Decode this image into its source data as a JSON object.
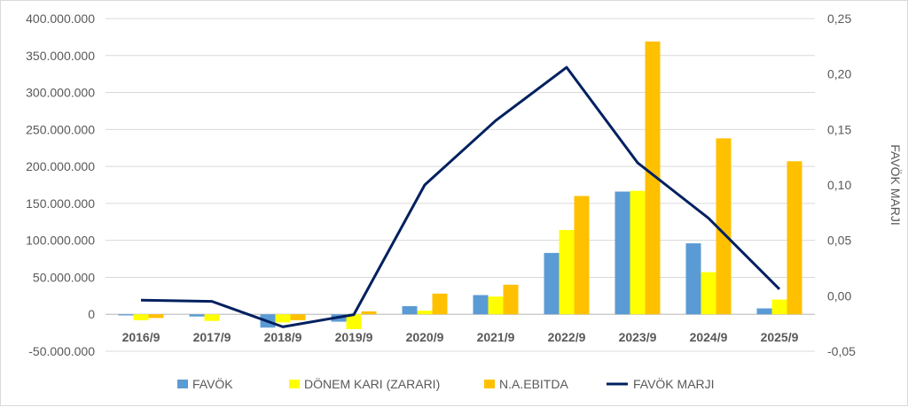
{
  "chart_data": {
    "type": "bar",
    "categories": [
      "2016/9",
      "2017/9",
      "2018/9",
      "2019/9",
      "2020/9",
      "2021/9",
      "2022/9",
      "2023/9",
      "2024/9",
      "2025/9"
    ],
    "series": [
      {
        "name": "FAVÖK",
        "type": "bar",
        "axis": "left",
        "color": "#5b9bd5",
        "values": [
          -1500000,
          -3000000,
          -18000000,
          -10000000,
          11000000,
          26000000,
          83000000,
          166000000,
          96000000,
          8000000
        ]
      },
      {
        "name": "DÖNEM KARI (ZARARI)",
        "type": "bar",
        "axis": "left",
        "color": "#ffff00",
        "values": [
          -8000000,
          -9000000,
          -11000000,
          -20000000,
          5000000,
          24000000,
          114000000,
          167000000,
          57000000,
          20000000
        ]
      },
      {
        "name": "N.A.EBITDA",
        "type": "bar",
        "axis": "left",
        "color": "#ffc000",
        "values": [
          -5000000,
          0,
          -8000000,
          4000000,
          28000000,
          40000000,
          160000000,
          369000000,
          238000000,
          207000000
        ]
      },
      {
        "name": "FAVÖK MARJI",
        "type": "line",
        "axis": "right",
        "color": "#002060",
        "values": [
          -0.004,
          -0.005,
          -0.028,
          -0.017,
          0.1,
          0.158,
          0.206,
          0.12,
          0.07,
          0.006
        ]
      }
    ],
    "y_left": {
      "min": -50000000,
      "max": 400000000,
      "step": 50000000,
      "ticks": [
        "-50.000.000",
        "0",
        "50.000.000",
        "100.000.000",
        "150.000.000",
        "200.000.000",
        "250.000.000",
        "300.000.000",
        "350.000.000",
        "400.000.000"
      ]
    },
    "y_right": {
      "min": -0.05,
      "max": 0.25,
      "step": 0.05,
      "ticks": [
        "-0,05",
        "0,00",
        "0,05",
        "0,10",
        "0,15",
        "0,20",
        "0,25"
      ],
      "label": "FAVÖK MARJI"
    },
    "grid": true,
    "legend_position": "bottom"
  }
}
